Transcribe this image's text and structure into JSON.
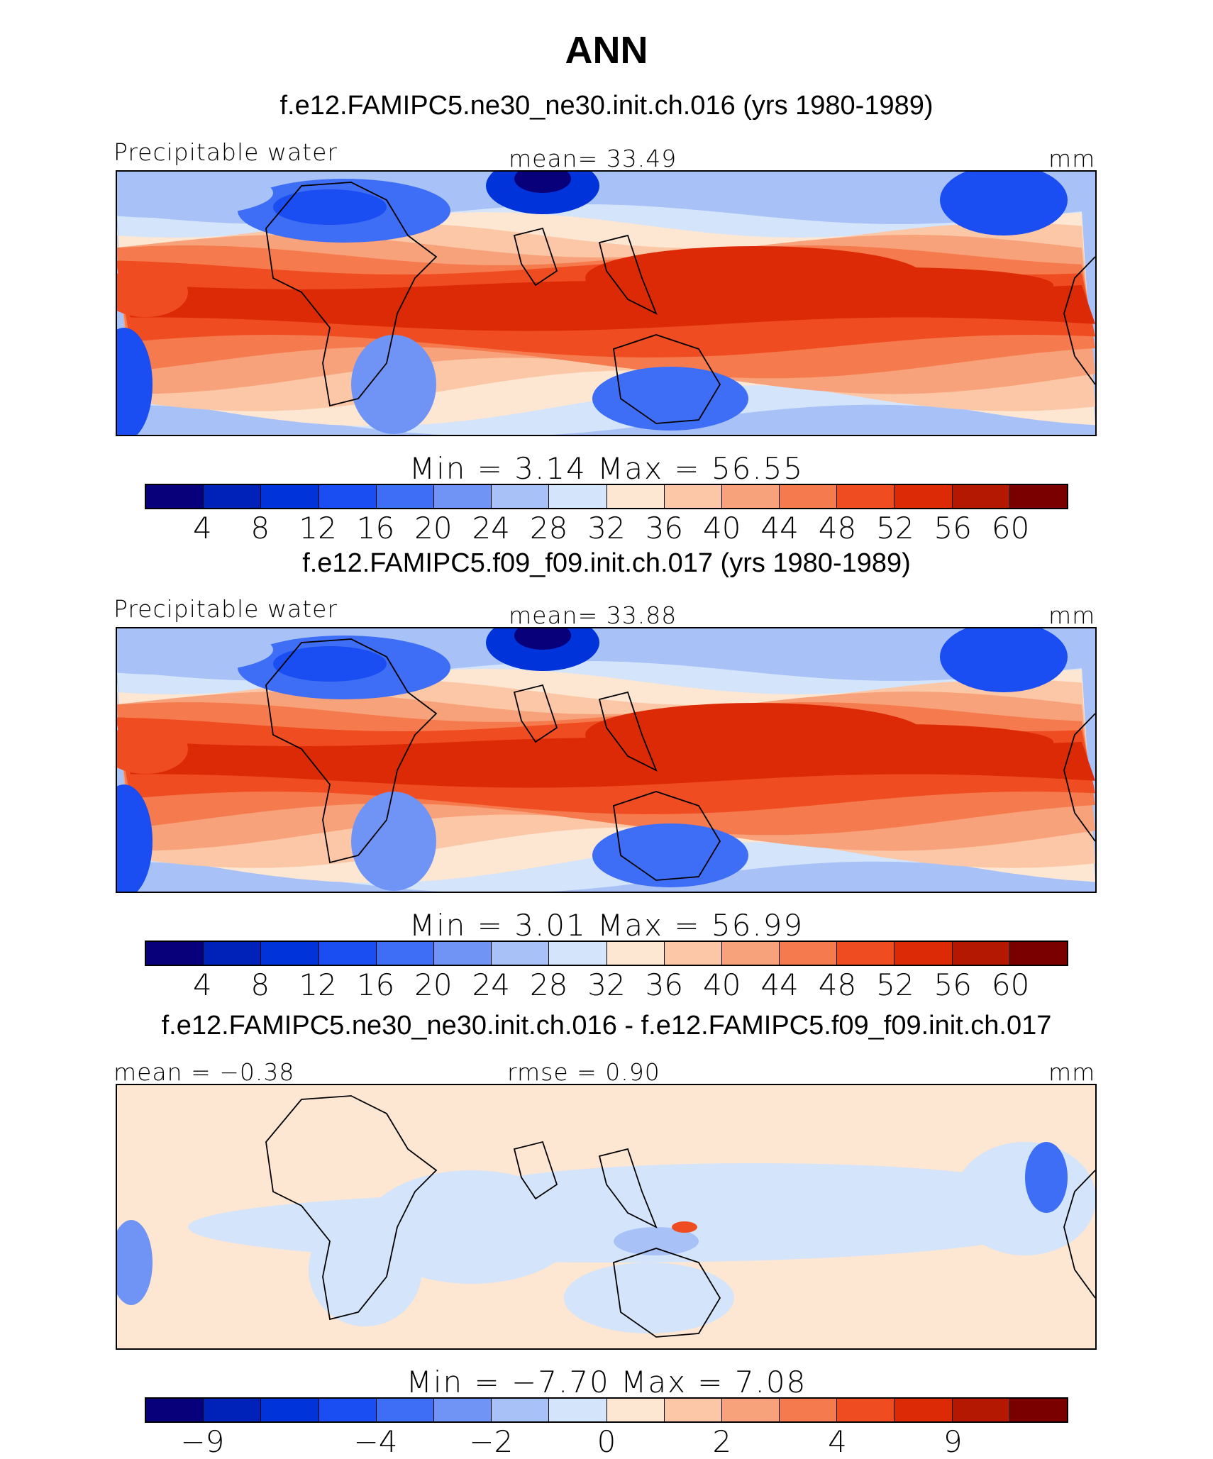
{
  "title": "ANN",
  "colors": [
    "#08007a",
    "#0022b8",
    "#0033d9",
    "#1a4df2",
    "#3d6ef5",
    "#6f94f5",
    "#a8c2f7",
    "#d4e4fb",
    "#fde6d2",
    "#fbc7a6",
    "#f7a27a",
    "#f57a4e",
    "#ef4d21",
    "#dc2a07",
    "#b41803",
    "#7a0000"
  ],
  "panels": [
    {
      "title": "f.e12.FAMIPC5.ne30_ne30.init.ch.016 (yrs 1980-1989)",
      "left_label": "Precipitable water",
      "center_label": "mean=   33.49",
      "right_label": "mm",
      "minmax": "Min  =     3.14  Max  =    56.55",
      "colorbar_ticks": [
        "4",
        "8",
        "12",
        "16",
        "20",
        "24",
        "28",
        "32",
        "36",
        "40",
        "44",
        "48",
        "52",
        "56",
        "60"
      ]
    },
    {
      "title": "f.e12.FAMIPC5.f09_f09.init.ch.017 (yrs 1980-1989)",
      "left_label": "Precipitable water",
      "center_label": "mean=   33.88",
      "right_label": "mm",
      "minmax": "Min  =     3.01  Max  =    56.99",
      "colorbar_ticks": [
        "4",
        "8",
        "12",
        "16",
        "20",
        "24",
        "28",
        "32",
        "36",
        "40",
        "44",
        "48",
        "52",
        "56",
        "60"
      ]
    },
    {
      "title": "f.e12.FAMIPC5.ne30_ne30.init.ch.016 - f.e12.FAMIPC5.f09_f09.init.ch.017",
      "left_label": "mean =   −0.38",
      "center_label": "rmse =    0.90",
      "right_label": "mm",
      "minmax": "Min  =   −7.70  Max  =     7.08",
      "colorbar_ticks": [
        "−9",
        "−4",
        "−2",
        "0",
        "2",
        "4",
        "9"
      ]
    }
  ],
  "chart_data": [
    {
      "type": "heatmap",
      "title": "f.e12.FAMIPC5.ne30_ne30.init.ch.016 (yrs 1980-1989)",
      "variable": "Precipitable water",
      "units": "mm",
      "mean": 33.49,
      "min": 3.14,
      "max": 56.55,
      "colorbar_levels": [
        4,
        8,
        12,
        16,
        20,
        24,
        28,
        32,
        36,
        40,
        44,
        48,
        52,
        56,
        60
      ]
    },
    {
      "type": "heatmap",
      "title": "f.e12.FAMIPC5.f09_f09.init.ch.017 (yrs 1980-1989)",
      "variable": "Precipitable water",
      "units": "mm",
      "mean": 33.88,
      "min": 3.01,
      "max": 56.99,
      "colorbar_levels": [
        4,
        8,
        12,
        16,
        20,
        24,
        28,
        32,
        36,
        40,
        44,
        48,
        52,
        56,
        60
      ]
    },
    {
      "type": "heatmap",
      "title": "f.e12.FAMIPC5.ne30_ne30.init.ch.016 - f.e12.FAMIPC5.f09_f09.init.ch.017",
      "units": "mm",
      "mean": -0.38,
      "rmse": 0.9,
      "min": -7.7,
      "max": 7.08,
      "colorbar_levels": [
        -9,
        -4,
        -2,
        0,
        2,
        4,
        9
      ]
    }
  ]
}
